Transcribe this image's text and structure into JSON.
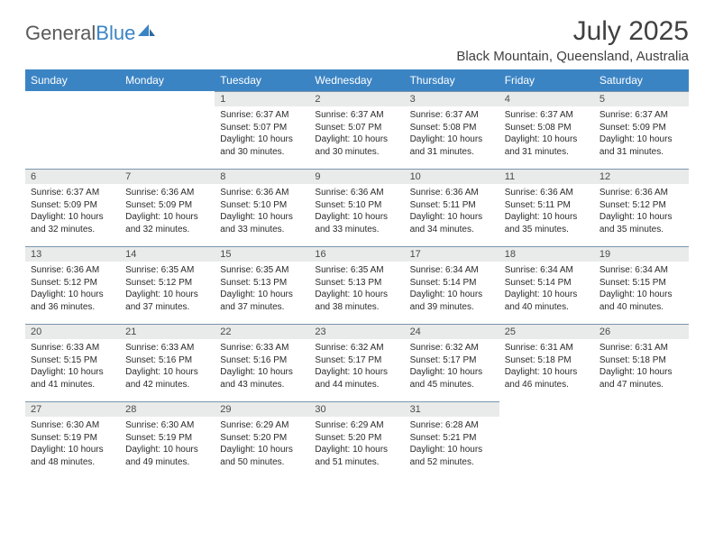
{
  "brand": {
    "name_gray": "General",
    "name_blue": "Blue"
  },
  "title": "July 2025",
  "location": "Black Mountain, Queensland, Australia",
  "day_headers": [
    "Sunday",
    "Monday",
    "Tuesday",
    "Wednesday",
    "Thursday",
    "Friday",
    "Saturday"
  ],
  "colors": {
    "header_bg": "#3b84c4",
    "header_fg": "#ffffff",
    "daynum_bg": "#e9eaea",
    "daynum_border": "#7a95ad",
    "text": "#2a2a2a",
    "title_color": "#404040"
  },
  "weeks": [
    [
      null,
      null,
      {
        "n": "1",
        "sr": "Sunrise: 6:37 AM",
        "ss": "Sunset: 5:07 PM",
        "d1": "Daylight: 10 hours",
        "d2": "and 30 minutes."
      },
      {
        "n": "2",
        "sr": "Sunrise: 6:37 AM",
        "ss": "Sunset: 5:07 PM",
        "d1": "Daylight: 10 hours",
        "d2": "and 30 minutes."
      },
      {
        "n": "3",
        "sr": "Sunrise: 6:37 AM",
        "ss": "Sunset: 5:08 PM",
        "d1": "Daylight: 10 hours",
        "d2": "and 31 minutes."
      },
      {
        "n": "4",
        "sr": "Sunrise: 6:37 AM",
        "ss": "Sunset: 5:08 PM",
        "d1": "Daylight: 10 hours",
        "d2": "and 31 minutes."
      },
      {
        "n": "5",
        "sr": "Sunrise: 6:37 AM",
        "ss": "Sunset: 5:09 PM",
        "d1": "Daylight: 10 hours",
        "d2": "and 31 minutes."
      }
    ],
    [
      {
        "n": "6",
        "sr": "Sunrise: 6:37 AM",
        "ss": "Sunset: 5:09 PM",
        "d1": "Daylight: 10 hours",
        "d2": "and 32 minutes."
      },
      {
        "n": "7",
        "sr": "Sunrise: 6:36 AM",
        "ss": "Sunset: 5:09 PM",
        "d1": "Daylight: 10 hours",
        "d2": "and 32 minutes."
      },
      {
        "n": "8",
        "sr": "Sunrise: 6:36 AM",
        "ss": "Sunset: 5:10 PM",
        "d1": "Daylight: 10 hours",
        "d2": "and 33 minutes."
      },
      {
        "n": "9",
        "sr": "Sunrise: 6:36 AM",
        "ss": "Sunset: 5:10 PM",
        "d1": "Daylight: 10 hours",
        "d2": "and 33 minutes."
      },
      {
        "n": "10",
        "sr": "Sunrise: 6:36 AM",
        "ss": "Sunset: 5:11 PM",
        "d1": "Daylight: 10 hours",
        "d2": "and 34 minutes."
      },
      {
        "n": "11",
        "sr": "Sunrise: 6:36 AM",
        "ss": "Sunset: 5:11 PM",
        "d1": "Daylight: 10 hours",
        "d2": "and 35 minutes."
      },
      {
        "n": "12",
        "sr": "Sunrise: 6:36 AM",
        "ss": "Sunset: 5:12 PM",
        "d1": "Daylight: 10 hours",
        "d2": "and 35 minutes."
      }
    ],
    [
      {
        "n": "13",
        "sr": "Sunrise: 6:36 AM",
        "ss": "Sunset: 5:12 PM",
        "d1": "Daylight: 10 hours",
        "d2": "and 36 minutes."
      },
      {
        "n": "14",
        "sr": "Sunrise: 6:35 AM",
        "ss": "Sunset: 5:12 PM",
        "d1": "Daylight: 10 hours",
        "d2": "and 37 minutes."
      },
      {
        "n": "15",
        "sr": "Sunrise: 6:35 AM",
        "ss": "Sunset: 5:13 PM",
        "d1": "Daylight: 10 hours",
        "d2": "and 37 minutes."
      },
      {
        "n": "16",
        "sr": "Sunrise: 6:35 AM",
        "ss": "Sunset: 5:13 PM",
        "d1": "Daylight: 10 hours",
        "d2": "and 38 minutes."
      },
      {
        "n": "17",
        "sr": "Sunrise: 6:34 AM",
        "ss": "Sunset: 5:14 PM",
        "d1": "Daylight: 10 hours",
        "d2": "and 39 minutes."
      },
      {
        "n": "18",
        "sr": "Sunrise: 6:34 AM",
        "ss": "Sunset: 5:14 PM",
        "d1": "Daylight: 10 hours",
        "d2": "and 40 minutes."
      },
      {
        "n": "19",
        "sr": "Sunrise: 6:34 AM",
        "ss": "Sunset: 5:15 PM",
        "d1": "Daylight: 10 hours",
        "d2": "and 40 minutes."
      }
    ],
    [
      {
        "n": "20",
        "sr": "Sunrise: 6:33 AM",
        "ss": "Sunset: 5:15 PM",
        "d1": "Daylight: 10 hours",
        "d2": "and 41 minutes."
      },
      {
        "n": "21",
        "sr": "Sunrise: 6:33 AM",
        "ss": "Sunset: 5:16 PM",
        "d1": "Daylight: 10 hours",
        "d2": "and 42 minutes."
      },
      {
        "n": "22",
        "sr": "Sunrise: 6:33 AM",
        "ss": "Sunset: 5:16 PM",
        "d1": "Daylight: 10 hours",
        "d2": "and 43 minutes."
      },
      {
        "n": "23",
        "sr": "Sunrise: 6:32 AM",
        "ss": "Sunset: 5:17 PM",
        "d1": "Daylight: 10 hours",
        "d2": "and 44 minutes."
      },
      {
        "n": "24",
        "sr": "Sunrise: 6:32 AM",
        "ss": "Sunset: 5:17 PM",
        "d1": "Daylight: 10 hours",
        "d2": "and 45 minutes."
      },
      {
        "n": "25",
        "sr": "Sunrise: 6:31 AM",
        "ss": "Sunset: 5:18 PM",
        "d1": "Daylight: 10 hours",
        "d2": "and 46 minutes."
      },
      {
        "n": "26",
        "sr": "Sunrise: 6:31 AM",
        "ss": "Sunset: 5:18 PM",
        "d1": "Daylight: 10 hours",
        "d2": "and 47 minutes."
      }
    ],
    [
      {
        "n": "27",
        "sr": "Sunrise: 6:30 AM",
        "ss": "Sunset: 5:19 PM",
        "d1": "Daylight: 10 hours",
        "d2": "and 48 minutes."
      },
      {
        "n": "28",
        "sr": "Sunrise: 6:30 AM",
        "ss": "Sunset: 5:19 PM",
        "d1": "Daylight: 10 hours",
        "d2": "and 49 minutes."
      },
      {
        "n": "29",
        "sr": "Sunrise: 6:29 AM",
        "ss": "Sunset: 5:20 PM",
        "d1": "Daylight: 10 hours",
        "d2": "and 50 minutes."
      },
      {
        "n": "30",
        "sr": "Sunrise: 6:29 AM",
        "ss": "Sunset: 5:20 PM",
        "d1": "Daylight: 10 hours",
        "d2": "and 51 minutes."
      },
      {
        "n": "31",
        "sr": "Sunrise: 6:28 AM",
        "ss": "Sunset: 5:21 PM",
        "d1": "Daylight: 10 hours",
        "d2": "and 52 minutes."
      },
      null,
      null
    ]
  ]
}
